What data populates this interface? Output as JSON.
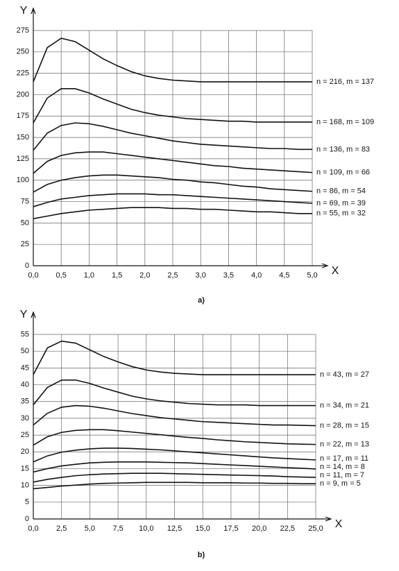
{
  "chart_data": [
    {
      "type": "line",
      "caption": "a)",
      "xlabel": "X",
      "ylabel": "Y",
      "x": [
        0,
        0.25,
        0.5,
        0.75,
        1,
        1.25,
        1.5,
        1.75,
        2,
        2.25,
        2.5,
        2.75,
        3,
        3.25,
        3.5,
        3.75,
        4,
        4.25,
        4.5,
        4.75,
        5
      ],
      "xlim": [
        0,
        5
      ],
      "ylim": [
        0,
        275
      ],
      "grid": true,
      "xticks": [
        {
          "value": 0,
          "label": "0,0"
        },
        {
          "value": 0.5,
          "label": "0,5"
        },
        {
          "value": 1,
          "label": "1,0"
        },
        {
          "value": 1.5,
          "label": "1,5"
        },
        {
          "value": 2,
          "label": "2,0"
        },
        {
          "value": 2.5,
          "label": "2,5"
        },
        {
          "value": 3,
          "label": "3,0"
        },
        {
          "value": 3.5,
          "label": "3,5"
        },
        {
          "value": 4,
          "label": "4,0"
        },
        {
          "value": 4.5,
          "label": "4,5"
        },
        {
          "value": 5,
          "label": "5,0"
        }
      ],
      "yticks": [
        0,
        25,
        50,
        75,
        100,
        125,
        150,
        175,
        200,
        225,
        250,
        275
      ],
      "series": [
        {
          "name": "n = 216, m = 137",
          "color": "#111111",
          "values": [
            215,
            255,
            266,
            262,
            252,
            242,
            234,
            227,
            222,
            219,
            217,
            216,
            215,
            215,
            215,
            215,
            215,
            215,
            215,
            215,
            215
          ]
        },
        {
          "name": "n = 168, m = 109",
          "color": "#111111",
          "values": [
            167,
            196,
            207,
            207,
            202,
            195,
            189,
            183,
            179,
            176,
            174,
            172,
            171,
            170,
            169,
            169,
            168,
            168,
            168,
            168,
            168
          ]
        },
        {
          "name": "n = 136, m = 83",
          "color": "#111111",
          "values": [
            135,
            155,
            164,
            167,
            166,
            163,
            159,
            155,
            152,
            149,
            146,
            144,
            142,
            141,
            140,
            139,
            138,
            137,
            137,
            136,
            136
          ]
        },
        {
          "name": "n = 109, m = 66",
          "color": "#111111",
          "values": [
            108,
            122,
            129,
            132,
            133,
            133,
            131,
            129,
            127,
            125,
            123,
            121,
            119,
            117,
            116,
            114,
            113,
            112,
            111,
            110,
            109
          ]
        },
        {
          "name": "n = 86, m = 54",
          "color": "#111111",
          "values": [
            86,
            95,
            100,
            103,
            105,
            106,
            106,
            105,
            104,
            103,
            101,
            100,
            98,
            97,
            95,
            93,
            92,
            90,
            89,
            88,
            87
          ]
        },
        {
          "name": "n = 69, m = 39",
          "color": "#111111",
          "values": [
            69,
            74,
            78,
            80,
            82,
            83,
            84,
            84,
            84,
            83,
            83,
            82,
            81,
            80,
            79,
            78,
            77,
            76,
            75,
            74,
            73
          ]
        },
        {
          "name": "n = 55, m = 32",
          "color": "#111111",
          "values": [
            55,
            58,
            61,
            63,
            65,
            66,
            67,
            68,
            68,
            68,
            67,
            67,
            66,
            66,
            65,
            64,
            63,
            63,
            62,
            61,
            61
          ]
        }
      ]
    },
    {
      "type": "line",
      "caption": "b)",
      "xlabel": "X",
      "ylabel": "Y",
      "x": [
        0,
        1.25,
        2.5,
        3.75,
        5,
        6.25,
        7.5,
        8.75,
        10,
        11.25,
        12.5,
        13.75,
        15,
        16.25,
        17.5,
        18.75,
        20,
        21.25,
        22.5,
        23.75,
        25
      ],
      "xlim": [
        0,
        25
      ],
      "ylim": [
        0,
        55
      ],
      "grid": true,
      "xticks": [
        {
          "value": 0,
          "label": "0,0"
        },
        {
          "value": 2.5,
          "label": "2,5"
        },
        {
          "value": 5,
          "label": "5,0"
        },
        {
          "value": 7.5,
          "label": "7,5"
        },
        {
          "value": 10,
          "label": "10,0"
        },
        {
          "value": 12.5,
          "label": "12,5"
        },
        {
          "value": 15,
          "label": "15,0"
        },
        {
          "value": 17.5,
          "label": "17,5"
        },
        {
          "value": 20,
          "label": "20,0"
        },
        {
          "value": 22.5,
          "label": "22,5"
        },
        {
          "value": 25,
          "label": "25,0"
        }
      ],
      "yticks": [
        0,
        5,
        10,
        15,
        20,
        25,
        30,
        35,
        40,
        45,
        50,
        55
      ],
      "series": [
        {
          "name": "n = 43, m = 27",
          "color": "#111111",
          "values": [
            43,
            51,
            53,
            52.4,
            50.4,
            48.4,
            46.8,
            45.4,
            44.4,
            43.8,
            43.4,
            43.2,
            43,
            43,
            43,
            43,
            43,
            43,
            43,
            43,
            43
          ]
        },
        {
          "name": "n = 34, m = 21",
          "color": "#111111",
          "values": [
            34,
            39.2,
            41.4,
            41.4,
            40.4,
            39,
            37.8,
            36.6,
            35.8,
            35.2,
            34.8,
            34.4,
            34.2,
            34,
            34,
            34,
            33.8,
            33.8,
            33.8,
            33.8,
            33.8
          ]
        },
        {
          "name": "n = 28, m = 15",
          "color": "#111111",
          "values": [
            28,
            31.5,
            33.3,
            33.8,
            33.6,
            33,
            32.2,
            31.4,
            30.8,
            30.2,
            29.8,
            29.4,
            29,
            28.8,
            28.6,
            28.4,
            28.2,
            28,
            28,
            27.9,
            27.8
          ]
        },
        {
          "name": "n = 22, m = 13",
          "color": "#111111",
          "values": [
            22,
            24.5,
            25.8,
            26.4,
            26.6,
            26.6,
            26.3,
            25.9,
            25.5,
            25.1,
            24.7,
            24.3,
            24,
            23.6,
            23.3,
            23,
            22.8,
            22.6,
            22.4,
            22.3,
            22.2
          ]
        },
        {
          "name": "n = 17, m = 11",
          "color": "#111111",
          "values": [
            17,
            18.8,
            19.9,
            20.5,
            20.9,
            21.1,
            21.1,
            21,
            20.8,
            20.6,
            20.3,
            20,
            19.7,
            19.4,
            19.1,
            18.8,
            18.5,
            18.2,
            18,
            17.8,
            17.6
          ]
        },
        {
          "name": "n = 14, m = 8",
          "color": "#111111",
          "values": [
            14,
            15,
            15.8,
            16.3,
            16.7,
            16.9,
            17,
            17,
            17,
            16.9,
            16.8,
            16.7,
            16.5,
            16.3,
            16.1,
            15.9,
            15.7,
            15.5,
            15.3,
            15.1,
            14.9
          ]
        },
        {
          "name": "n = 11, m = 7",
          "color": "#111111",
          "values": [
            11,
            11.8,
            12.4,
            12.9,
            13.2,
            13.4,
            13.5,
            13.6,
            13.6,
            13.6,
            13.5,
            13.4,
            13.3,
            13.2,
            13.1,
            13,
            12.9,
            12.8,
            12.6,
            12.5,
            12.4
          ]
        },
        {
          "name": "n = 9, m = 5",
          "color": "#111111",
          "values": [
            9,
            9.4,
            9.8,
            10.1,
            10.4,
            10.6,
            10.7,
            10.8,
            10.9,
            10.9,
            10.9,
            10.9,
            10.8,
            10.8,
            10.8,
            10.7,
            10.7,
            10.6,
            10.6,
            10.5,
            10.5
          ]
        }
      ]
    }
  ]
}
